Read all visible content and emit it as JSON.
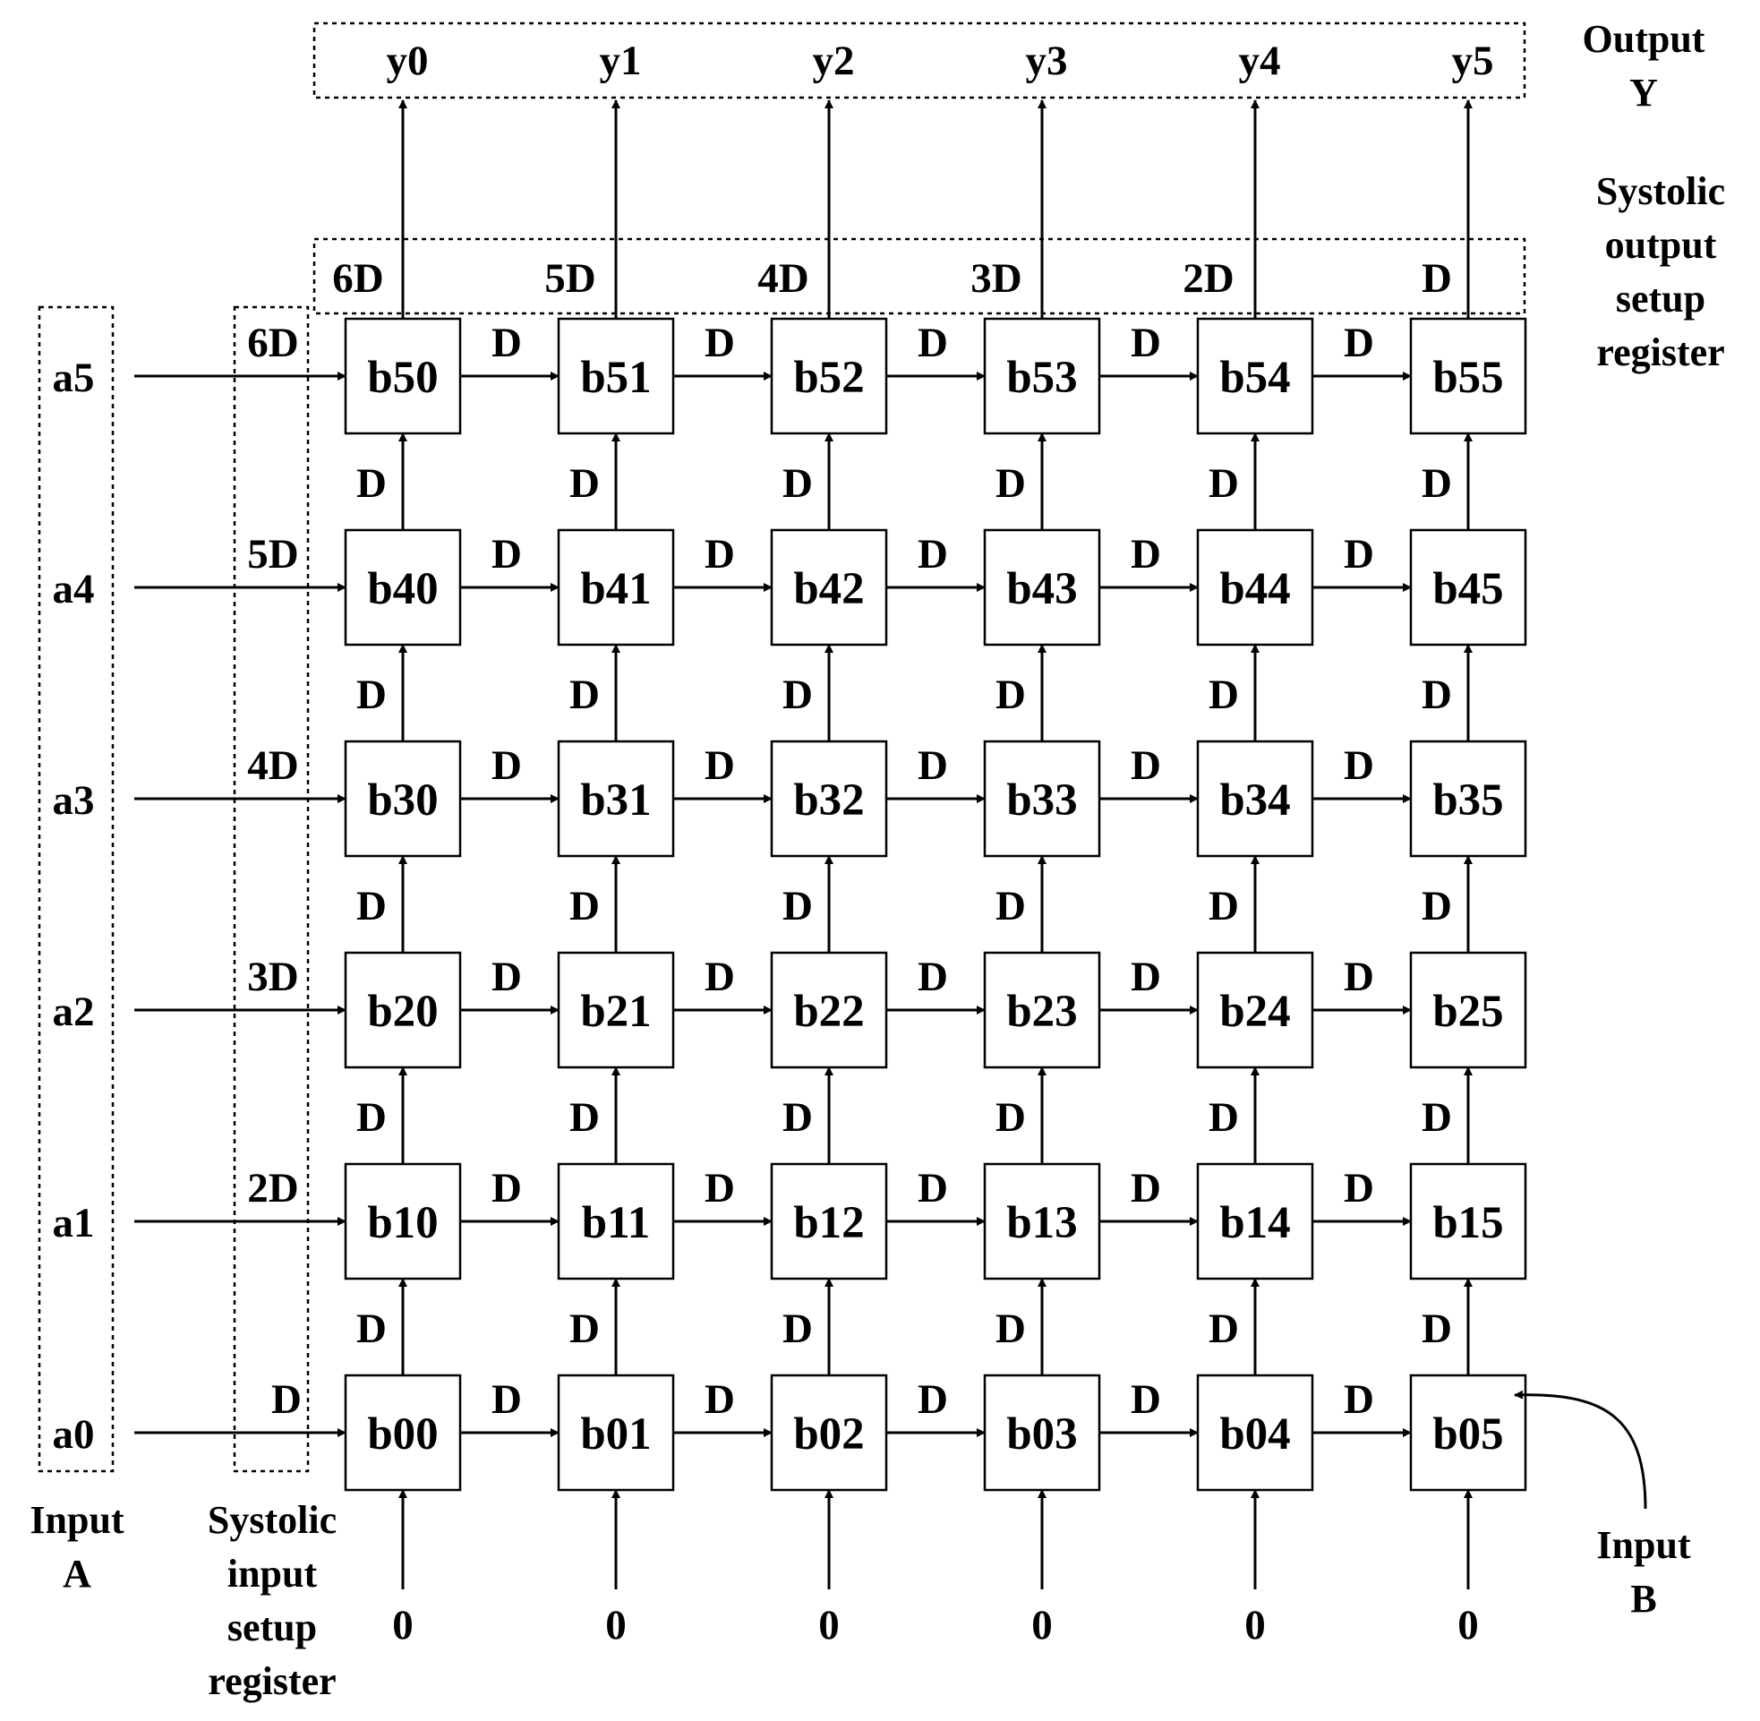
{
  "cells": [
    [
      "b00",
      "b01",
      "b02",
      "b03",
      "b04",
      "b05"
    ],
    [
      "b10",
      "b11",
      "b12",
      "b13",
      "b14",
      "b15"
    ],
    [
      "b20",
      "b21",
      "b22",
      "b23",
      "b24",
      "b25"
    ],
    [
      "b30",
      "b31",
      "b32",
      "b33",
      "b34",
      "b35"
    ],
    [
      "b40",
      "b41",
      "b42",
      "b43",
      "b44",
      "b45"
    ],
    [
      "b50",
      "b51",
      "b52",
      "b53",
      "b54",
      "b55"
    ]
  ],
  "delay_label": "D",
  "inputs_a": [
    "a0",
    "a1",
    "a2",
    "a3",
    "a4",
    "a5"
  ],
  "input_delays": [
    "D",
    "2D",
    "3D",
    "4D",
    "5D",
    "6D"
  ],
  "outputs_y": [
    "y0",
    "y1",
    "y2",
    "y3",
    "y4",
    "y5"
  ],
  "output_delays": [
    "6D",
    "5D",
    "4D",
    "3D",
    "2D",
    "D"
  ],
  "zeros": [
    "0",
    "0",
    "0",
    "0",
    "0",
    "0"
  ],
  "captions": {
    "input_a": [
      "Input",
      "A"
    ],
    "systolic_input": [
      "Systolic",
      "input",
      "setup",
      "register"
    ],
    "output_y": [
      "Output",
      "Y"
    ],
    "systolic_output": [
      "Systolic",
      "output",
      "setup",
      "register"
    ],
    "input_b": [
      "Input",
      "B"
    ]
  }
}
